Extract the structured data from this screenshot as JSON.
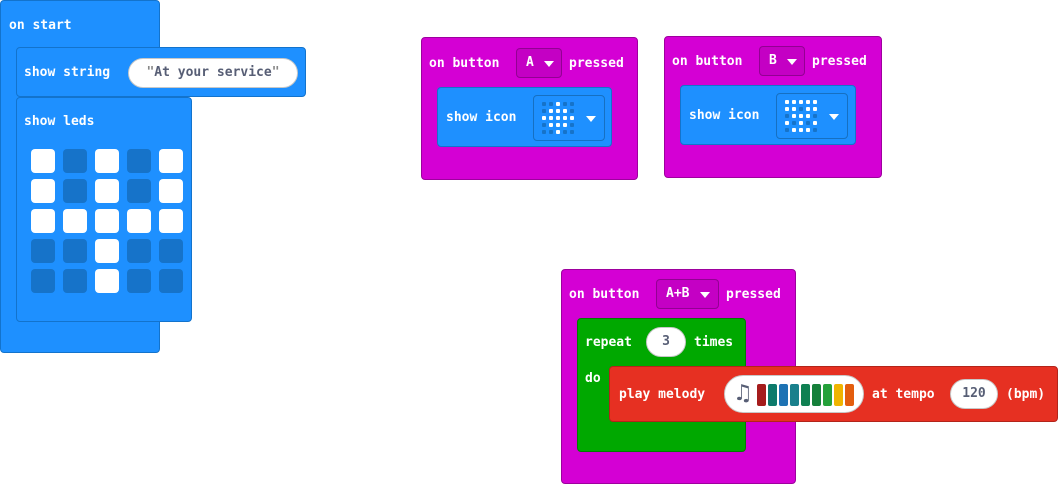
{
  "on_start": {
    "hat_label": "on start",
    "show_string_label": "show string",
    "string_value": "At your service",
    "show_leds_label": "show leds",
    "leds": [
      [
        1,
        0,
        1,
        0,
        1
      ],
      [
        1,
        0,
        1,
        0,
        1
      ],
      [
        1,
        1,
        1,
        1,
        1
      ],
      [
        0,
        0,
        1,
        0,
        0
      ],
      [
        0,
        0,
        1,
        0,
        0
      ]
    ]
  },
  "button_a": {
    "prefix": "on button",
    "button": "A",
    "suffix": "pressed",
    "show_icon_label": "show icon",
    "icon": [
      [
        0,
        0,
        1,
        0,
        0
      ],
      [
        0,
        1,
        1,
        1,
        0
      ],
      [
        1,
        1,
        1,
        1,
        1
      ],
      [
        0,
        1,
        1,
        1,
        0
      ],
      [
        0,
        0,
        1,
        0,
        0
      ]
    ]
  },
  "button_b": {
    "prefix": "on button",
    "button": "B",
    "suffix": "pressed",
    "show_icon_label": "show icon",
    "icon": [
      [
        1,
        1,
        1,
        1,
        1
      ],
      [
        1,
        1,
        0,
        1,
        1
      ],
      [
        0,
        1,
        1,
        1,
        0
      ],
      [
        1,
        0,
        1,
        0,
        1
      ],
      [
        0,
        1,
        1,
        1,
        0
      ]
    ]
  },
  "button_ab": {
    "prefix": "on button",
    "button": "A+B",
    "suffix": "pressed",
    "repeat_label": "repeat",
    "repeat_count": "3",
    "times_label": "times",
    "do_label": "do",
    "play_melody_label": "play melody",
    "melody_colors": [
      "#a51c1c",
      "#0d7a6b",
      "#1e73b4",
      "#19808c",
      "#0f8052",
      "#16803b",
      "#25a13a",
      "#f0b400",
      "#e35d0e"
    ],
    "at_tempo_label": "at tempo",
    "tempo_value": "120",
    "bpm_label": "(bpm)"
  },
  "colors": {
    "basic": "#1e90ff",
    "input": "#d400d4",
    "loops": "#00a800",
    "music": "#e63022"
  },
  "icons": [
    "caret-down-icon",
    "music-note-icon"
  ]
}
